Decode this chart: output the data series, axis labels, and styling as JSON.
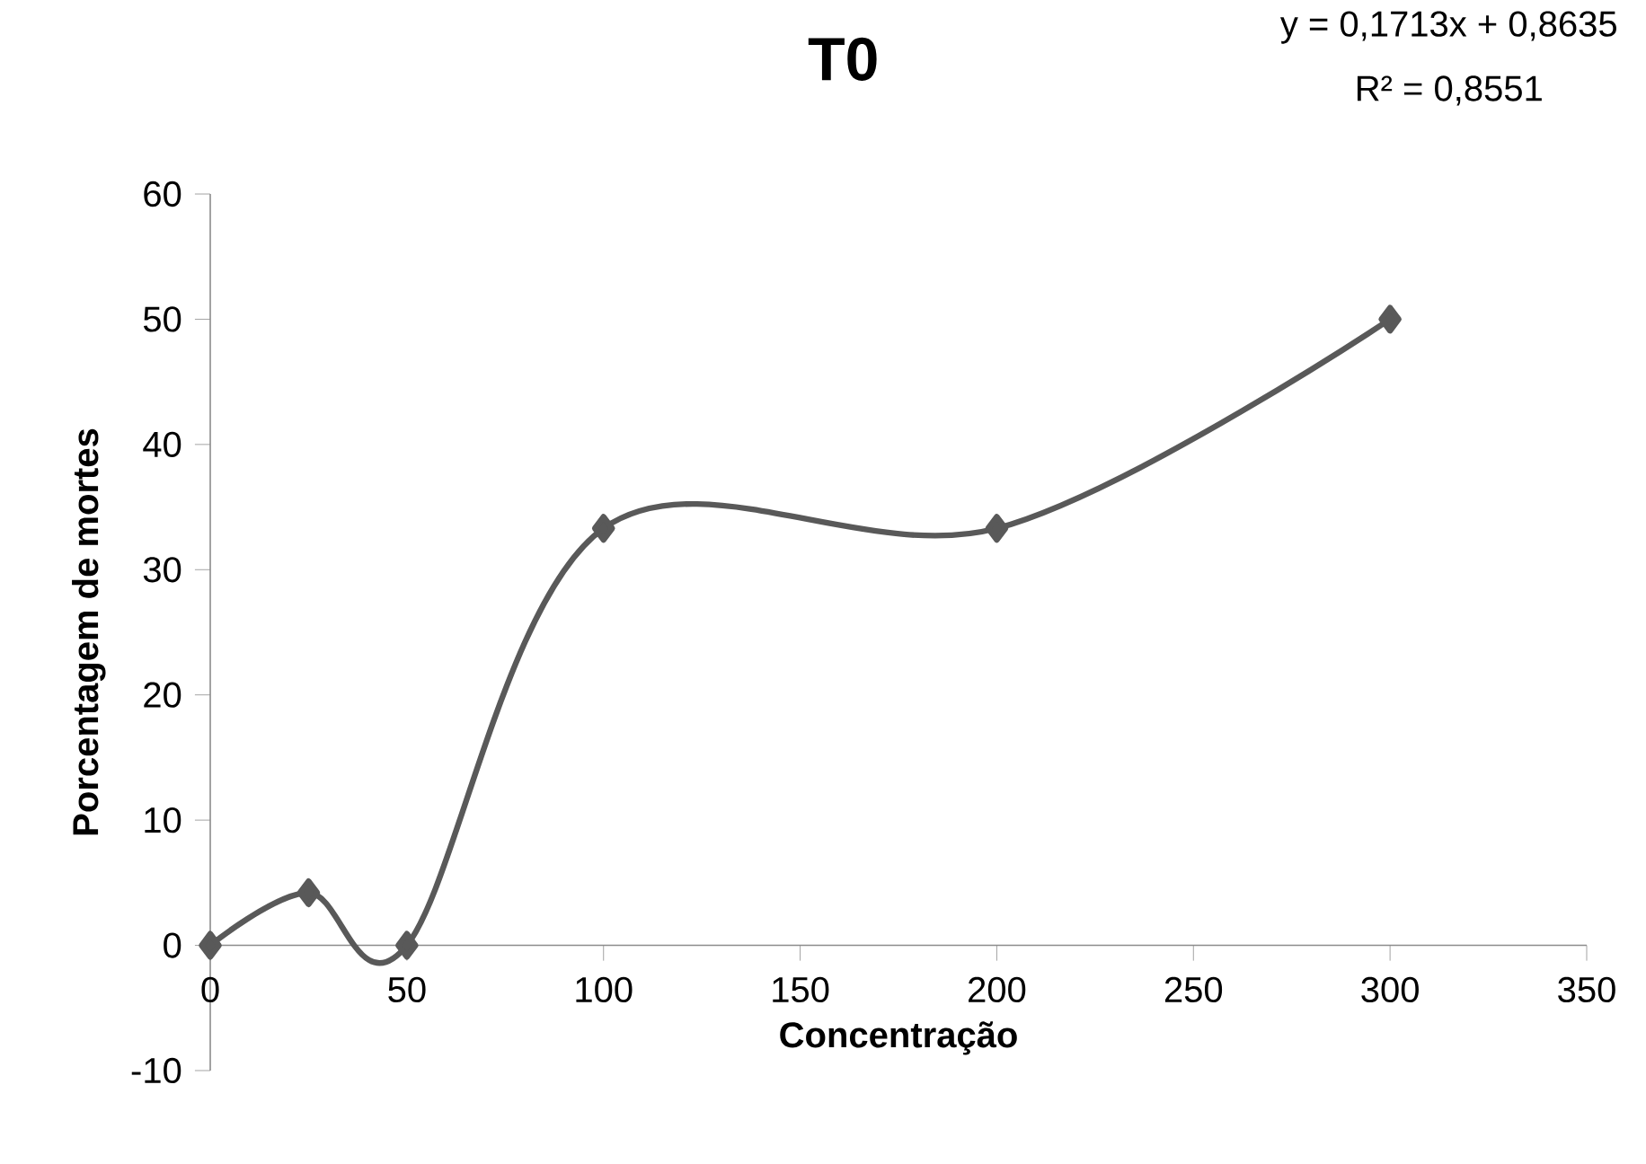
{
  "chart_data": {
    "type": "line",
    "title": "T0",
    "xlabel": "Concentração",
    "ylabel": "Porcentagem de mortes",
    "annotations": [
      "y = 0,1713x + 0,8635",
      "R² = 0,8551"
    ],
    "x": [
      0,
      25,
      50,
      100,
      200,
      300
    ],
    "series": [
      {
        "color": "#595959",
        "values": [
          0,
          4.2,
          0,
          33.3,
          33.3,
          50
        ]
      }
    ],
    "xlim": [
      0,
      350
    ],
    "ylim": [
      -10,
      60
    ],
    "xticks": [
      0,
      50,
      100,
      150,
      200,
      250,
      300,
      350
    ],
    "yticks": [
      -10,
      0,
      10,
      20,
      30,
      40,
      50,
      60
    ],
    "marker": "diamond"
  }
}
